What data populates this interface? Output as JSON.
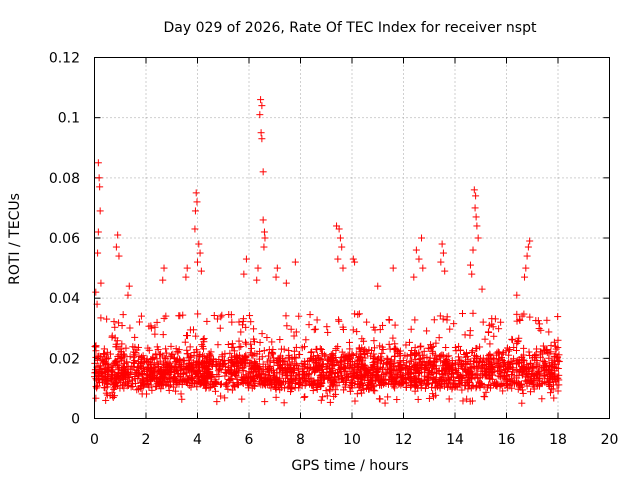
{
  "chart_data": {
    "type": "scatter",
    "title": "Day 029 of 2026, Rate Of TEC Index for receiver nspt",
    "xlabel": "GPS time / hours",
    "ylabel": "ROTI / TECUs",
    "xlim": [
      0,
      20
    ],
    "ylim": [
      0,
      0.12
    ],
    "xticks": [
      "0",
      "2",
      "4",
      "6",
      "8",
      "10",
      "12",
      "14",
      "16",
      "18",
      "20"
    ],
    "yticks": [
      "0",
      "0.02",
      "0.04",
      "0.06",
      "0.08",
      "0.1",
      "0.12"
    ],
    "grid": true,
    "marker": "plus",
    "color": "#ff0000",
    "series": [
      {
        "name": "ROTI",
        "data_coverage_hours": [
          0,
          18.05
        ],
        "baseline_band": [
          0.005,
          0.025
        ],
        "points": [
          {
            "x": 0.15,
            "y": 0.085
          },
          {
            "x": 0.18,
            "y": 0.08
          },
          {
            "x": 0.2,
            "y": 0.077
          },
          {
            "x": 0.22,
            "y": 0.069
          },
          {
            "x": 0.15,
            "y": 0.062
          },
          {
            "x": 0.12,
            "y": 0.055
          },
          {
            "x": 0.05,
            "y": 0.042
          },
          {
            "x": 0.1,
            "y": 0.038
          },
          {
            "x": 0.25,
            "y": 0.045
          },
          {
            "x": 0.9,
            "y": 0.061
          },
          {
            "x": 0.85,
            "y": 0.057
          },
          {
            "x": 0.95,
            "y": 0.054
          },
          {
            "x": 1.35,
            "y": 0.044
          },
          {
            "x": 1.3,
            "y": 0.041
          },
          {
            "x": 2.7,
            "y": 0.05
          },
          {
            "x": 2.65,
            "y": 0.046
          },
          {
            "x": 3.6,
            "y": 0.05
          },
          {
            "x": 3.55,
            "y": 0.047
          },
          {
            "x": 3.95,
            "y": 0.075
          },
          {
            "x": 3.98,
            "y": 0.072
          },
          {
            "x": 3.92,
            "y": 0.069
          },
          {
            "x": 3.9,
            "y": 0.063
          },
          {
            "x": 4.05,
            "y": 0.058
          },
          {
            "x": 4.1,
            "y": 0.055
          },
          {
            "x": 4.0,
            "y": 0.052
          },
          {
            "x": 4.15,
            "y": 0.049
          },
          {
            "x": 5.9,
            "y": 0.053
          },
          {
            "x": 5.8,
            "y": 0.048
          },
          {
            "x": 6.45,
            "y": 0.106
          },
          {
            "x": 6.5,
            "y": 0.104
          },
          {
            "x": 6.42,
            "y": 0.101
          },
          {
            "x": 6.47,
            "y": 0.095
          },
          {
            "x": 6.5,
            "y": 0.093
          },
          {
            "x": 6.55,
            "y": 0.082
          },
          {
            "x": 6.55,
            "y": 0.066
          },
          {
            "x": 6.6,
            "y": 0.062
          },
          {
            "x": 6.62,
            "y": 0.06
          },
          {
            "x": 6.58,
            "y": 0.057
          },
          {
            "x": 6.35,
            "y": 0.05
          },
          {
            "x": 6.3,
            "y": 0.046
          },
          {
            "x": 7.1,
            "y": 0.05
          },
          {
            "x": 7.05,
            "y": 0.047
          },
          {
            "x": 7.8,
            "y": 0.052
          },
          {
            "x": 7.45,
            "y": 0.045
          },
          {
            "x": 9.4,
            "y": 0.064
          },
          {
            "x": 9.5,
            "y": 0.063
          },
          {
            "x": 9.55,
            "y": 0.06
          },
          {
            "x": 9.6,
            "y": 0.057
          },
          {
            "x": 9.45,
            "y": 0.053
          },
          {
            "x": 9.65,
            "y": 0.05
          },
          {
            "x": 10.05,
            "y": 0.053
          },
          {
            "x": 10.1,
            "y": 0.052
          },
          {
            "x": 11.0,
            "y": 0.044
          },
          {
            "x": 11.6,
            "y": 0.05
          },
          {
            "x": 12.7,
            "y": 0.06
          },
          {
            "x": 12.5,
            "y": 0.056
          },
          {
            "x": 12.6,
            "y": 0.053
          },
          {
            "x": 12.75,
            "y": 0.05
          },
          {
            "x": 12.4,
            "y": 0.047
          },
          {
            "x": 13.5,
            "y": 0.058
          },
          {
            "x": 13.55,
            "y": 0.055
          },
          {
            "x": 13.45,
            "y": 0.052
          },
          {
            "x": 13.6,
            "y": 0.049
          },
          {
            "x": 14.75,
            "y": 0.076
          },
          {
            "x": 14.8,
            "y": 0.074
          },
          {
            "x": 14.78,
            "y": 0.07
          },
          {
            "x": 14.82,
            "y": 0.067
          },
          {
            "x": 14.85,
            "y": 0.064
          },
          {
            "x": 14.9,
            "y": 0.06
          },
          {
            "x": 14.7,
            "y": 0.056
          },
          {
            "x": 14.6,
            "y": 0.051
          },
          {
            "x": 14.65,
            "y": 0.048
          },
          {
            "x": 15.05,
            "y": 0.043
          },
          {
            "x": 16.9,
            "y": 0.059
          },
          {
            "x": 16.85,
            "y": 0.057
          },
          {
            "x": 16.8,
            "y": 0.054
          },
          {
            "x": 16.75,
            "y": 0.05
          },
          {
            "x": 16.7,
            "y": 0.047
          },
          {
            "x": 16.4,
            "y": 0.041
          },
          {
            "x": 18.0,
            "y": 0.026
          },
          {
            "x": 17.9,
            "y": 0.024
          }
        ]
      }
    ]
  }
}
